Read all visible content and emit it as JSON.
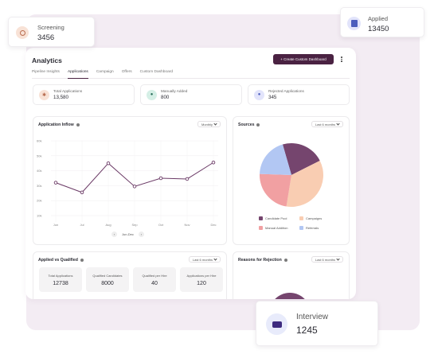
{
  "floating": {
    "screening": {
      "label": "Screening",
      "value": "3456"
    },
    "applied": {
      "label": "Applied",
      "value": "13450"
    },
    "interview": {
      "label": "Interview",
      "value": "1245"
    }
  },
  "header": {
    "title": "Analytics",
    "create_button": "+ Create Custom Dashboard"
  },
  "tabs": [
    {
      "label": "Pipeline Insights",
      "active": false
    },
    {
      "label": "Applications",
      "active": true
    },
    {
      "label": "Campaign",
      "active": false
    },
    {
      "label": "Offers",
      "active": false
    },
    {
      "label": "Custom Dashboard",
      "active": false
    }
  ],
  "stats": [
    {
      "label": "Total Applications",
      "value": "13,580",
      "icon": "applications-icon",
      "color": "#f8e2d6"
    },
    {
      "label": "Manually Added",
      "value": "800",
      "icon": "user-add-icon",
      "color": "#d5efe6"
    },
    {
      "label": "Rejected Applications",
      "value": "345",
      "icon": "reject-icon",
      "color": "#e2e4fb"
    }
  ],
  "inflow": {
    "title": "Application Inflow",
    "filter": "Monthly",
    "range_label": "Jun-Dec"
  },
  "sources": {
    "title": "Sources",
    "filter": "Last 6 months",
    "legend": [
      "Candidate Pool",
      "Campaigns",
      "Manual Addition",
      "Referrals"
    ]
  },
  "applied_vs_qualified": {
    "title": "Applied vs Qualified",
    "filter": "Last 6 months",
    "boxes": [
      {
        "label": "Total Applications",
        "value": "12738"
      },
      {
        "label": "Qualified Candidates",
        "value": "8000"
      },
      {
        "label": "Qualified per Hire",
        "value": "40"
      },
      {
        "label": "Applications per Hire",
        "value": "120"
      }
    ]
  },
  "rejection": {
    "title": "Reasons for Rejection",
    "filter": "Last 6 months"
  },
  "chart_data": [
    {
      "type": "line",
      "title": "Application Inflow",
      "categories": [
        "Jun",
        "Jul",
        "Aug",
        "Sep",
        "Oct",
        "Nov",
        "Dec"
      ],
      "values": [
        32000,
        25500,
        45000,
        29500,
        35000,
        34500,
        45500
      ],
      "yticks": [
        "60k",
        "50k",
        "40k",
        "30k",
        "20k",
        "10k"
      ],
      "ylim": [
        10000,
        60000
      ],
      "grid": true,
      "color": "#6b3a66"
    },
    {
      "type": "pie",
      "title": "Sources",
      "categories": [
        "Candidate Pool",
        "Campaigns",
        "Manual Addition",
        "Referrals"
      ],
      "values": [
        22,
        35,
        23,
        20
      ],
      "colors": [
        "#75456e",
        "#f9cdb2",
        "#f1a0a2",
        "#b2c7f3"
      ]
    }
  ]
}
